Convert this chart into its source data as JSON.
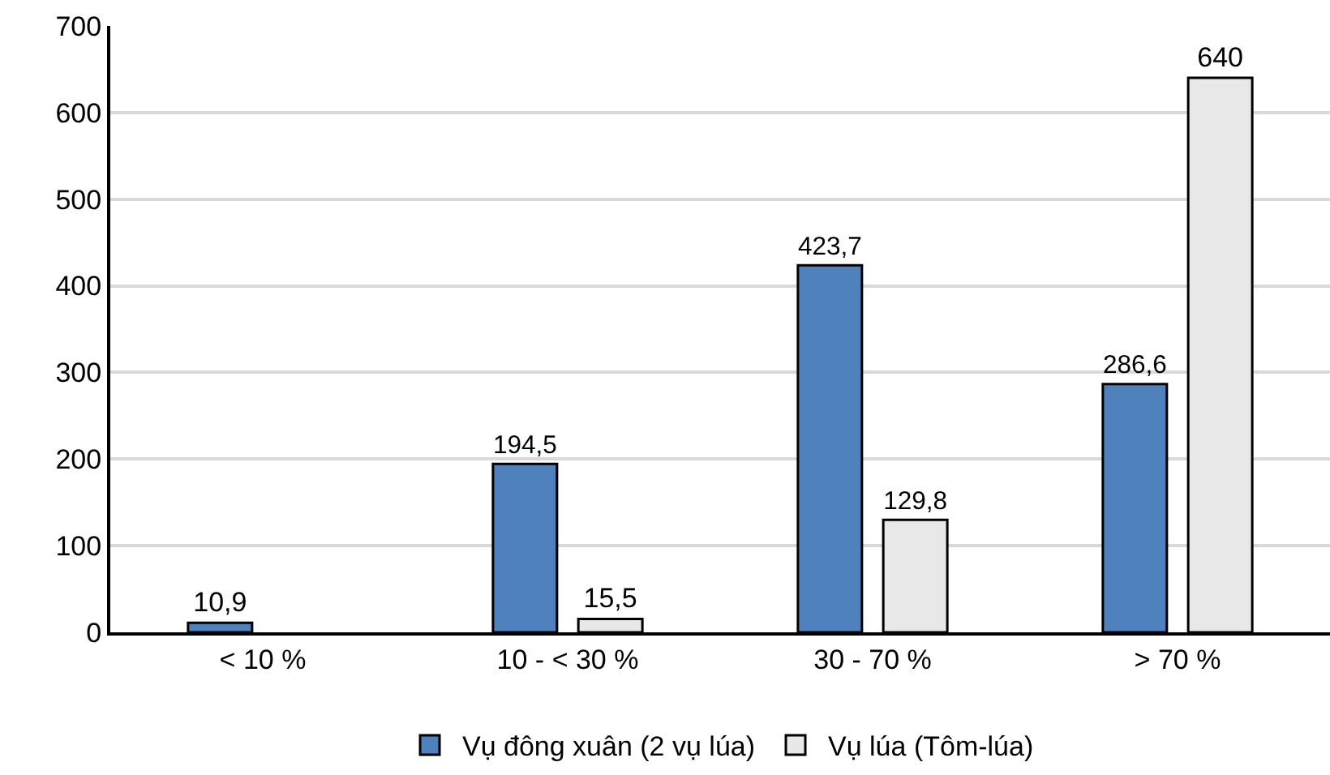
{
  "chart_data": {
    "type": "bar",
    "categories": [
      "< 10 %",
      "10 - < 30 %",
      "30 - 70 %",
      "> 70 %"
    ],
    "series": [
      {
        "name": "Vụ đông xuân (2 vụ lúa)",
        "color": "#4f81bd",
        "values": [
          10.9,
          194.5,
          423.7,
          286.6
        ],
        "value_labels": [
          "10,9",
          "194,5",
          "423,7",
          "286,6"
        ]
      },
      {
        "name": "Vụ lúa (Tôm-lúa)",
        "color": "#e8e8e8",
        "values": [
          null,
          15.5,
          129.8,
          640
        ],
        "value_labels": [
          null,
          "15,5",
          "129,8",
          "640"
        ]
      }
    ],
    "ylim": [
      0,
      700
    ],
    "yticks": [
      0,
      100,
      200,
      300,
      400,
      500,
      600,
      700
    ],
    "grid": "y",
    "legend": "bottom"
  }
}
